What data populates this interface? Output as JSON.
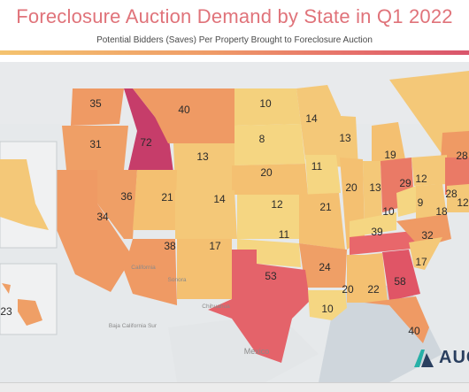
{
  "title": "Foreclosure Auction Demand by State in Q1 2022",
  "subtitle": "Potential Bidders (Saves) Per Property Brought to Foreclosure Auction",
  "colors": {
    "low": "#f4d17d",
    "mid": "#ef9f66",
    "high": "#e4636a",
    "max": "#c63d6a",
    "background": "#dfe3e6"
  },
  "states": [
    {
      "label": "35"
    },
    {
      "label": "40"
    },
    {
      "label": "10"
    },
    {
      "label": "14"
    },
    {
      "label": "31"
    },
    {
      "label": "72"
    },
    {
      "label": "8"
    },
    {
      "label": "13"
    },
    {
      "label": "19"
    },
    {
      "label": "28"
    },
    {
      "label": "13"
    },
    {
      "label": "20"
    },
    {
      "label": "11"
    },
    {
      "label": "36"
    },
    {
      "label": "21"
    },
    {
      "label": "14"
    },
    {
      "label": "12"
    },
    {
      "label": "21"
    },
    {
      "label": "20"
    },
    {
      "label": "13"
    },
    {
      "label": "29"
    },
    {
      "label": "12"
    },
    {
      "label": "28"
    },
    {
      "label": "9"
    },
    {
      "label": "10"
    },
    {
      "label": "18"
    },
    {
      "label": "12"
    },
    {
      "label": "34"
    },
    {
      "label": "39"
    },
    {
      "label": "32"
    },
    {
      "label": "38"
    },
    {
      "label": "17"
    },
    {
      "label": "11"
    },
    {
      "label": "24"
    },
    {
      "label": "20"
    },
    {
      "label": "22"
    },
    {
      "label": "58"
    },
    {
      "label": "17"
    },
    {
      "label": "53"
    },
    {
      "label": "10"
    },
    {
      "label": "40"
    },
    {
      "label": "23"
    }
  ],
  "places": [
    "California",
    "Chihuahua",
    "Baja California Sur",
    "Sonora",
    "Mexico"
  ],
  "logo": "AUC"
}
